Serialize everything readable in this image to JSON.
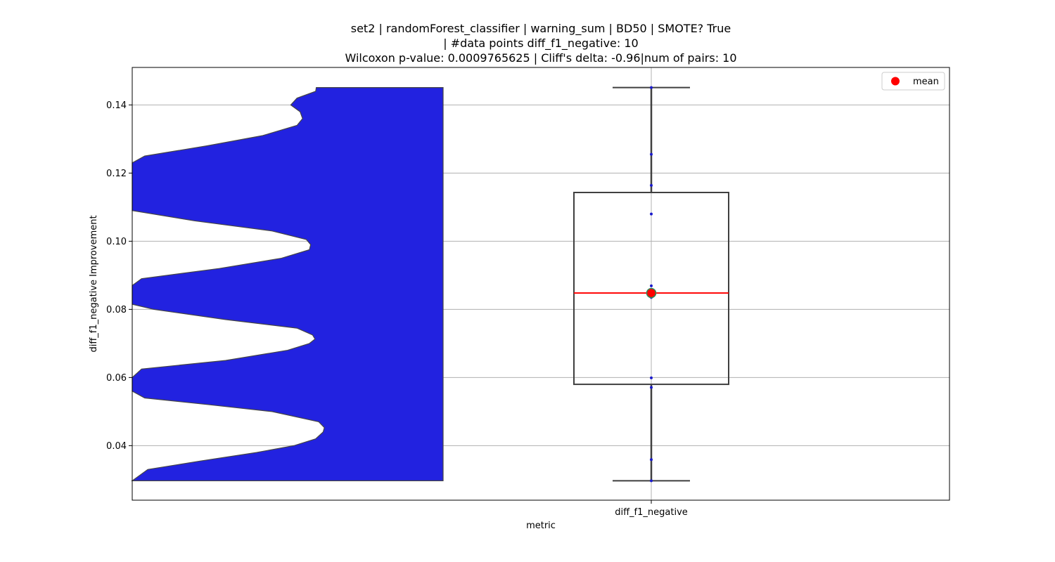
{
  "chart_data": {
    "type": "box-violin",
    "title_lines": [
      "set2 | randomForest_classifier | warning_sum | BD50 | SMOTE? True",
      "| #data points diff_f1_negative: 10",
      "Wilcoxon p-value: 0.0009765625 | Cliff's delta: -0.96|num of pairs: 10"
    ],
    "xlabel": "metric",
    "ylabel": "diff_f1_negative Improvement",
    "categories": [
      "diff_f1_negative"
    ],
    "ylim": [
      0.024,
      0.151
    ],
    "yticks": [
      0.04,
      0.06,
      0.08,
      0.1,
      0.12,
      0.14
    ],
    "ytick_labels": [
      "0.04",
      "0.06",
      "0.08",
      "0.10",
      "0.12",
      "0.14"
    ],
    "grid": true,
    "legend": {
      "entries": [
        {
          "label": "mean",
          "color": "#ff0000"
        }
      ],
      "placement": "top-right"
    },
    "points": [
      0.0297,
      0.0359,
      0.0571,
      0.0599,
      0.0835,
      0.0869,
      0.108,
      0.1164,
      0.1255,
      0.1451
    ],
    "box": {
      "whisker_low": 0.0297,
      "q1": 0.058,
      "median": 0.0848,
      "q3": 0.1143,
      "whisker_high": 0.1451
    },
    "mean": 0.0848,
    "violin_density": [
      [
        0.0297,
        1.0
      ],
      [
        0.033,
        0.95
      ],
      [
        0.0355,
        0.78
      ],
      [
        0.038,
        0.6
      ],
      [
        0.04,
        0.48
      ],
      [
        0.042,
        0.41
      ],
      [
        0.044,
        0.386
      ],
      [
        0.0453,
        0.382
      ],
      [
        0.047,
        0.4
      ],
      [
        0.05,
        0.55
      ],
      [
        0.052,
        0.75
      ],
      [
        0.054,
        0.96
      ],
      [
        0.056,
        1.0
      ],
      [
        0.06,
        1.0
      ],
      [
        0.0625,
        0.97
      ],
      [
        0.065,
        0.7
      ],
      [
        0.068,
        0.5
      ],
      [
        0.07,
        0.43
      ],
      [
        0.0713,
        0.412
      ],
      [
        0.0725,
        0.42
      ],
      [
        0.0745,
        0.47
      ],
      [
        0.077,
        0.7
      ],
      [
        0.08,
        0.93
      ],
      [
        0.0815,
        1.0
      ],
      [
        0.087,
        1.0
      ],
      [
        0.089,
        0.97
      ],
      [
        0.092,
        0.72
      ],
      [
        0.095,
        0.52
      ],
      [
        0.0975,
        0.43
      ],
      [
        0.099,
        0.426
      ],
      [
        0.1005,
        0.44
      ],
      [
        0.103,
        0.55
      ],
      [
        0.106,
        0.8
      ],
      [
        0.109,
        1.0
      ],
      [
        0.123,
        1.0
      ],
      [
        0.125,
        0.96
      ],
      [
        0.128,
        0.76
      ],
      [
        0.131,
        0.58
      ],
      [
        0.134,
        0.47
      ],
      [
        0.136,
        0.452
      ],
      [
        0.138,
        0.46
      ],
      [
        0.14,
        0.49
      ],
      [
        0.142,
        0.47
      ],
      [
        0.144,
        0.41
      ],
      [
        0.1451,
        0.408
      ]
    ],
    "colors": {
      "violin_fill": "#2222e0",
      "violin_edge": "#444444",
      "box_edge": "#3f3f3f",
      "median": "#ff0000",
      "mean_marker": "#ff0000",
      "mean_edge": "#2e8b57",
      "points": "#1a1acc",
      "grid": "#b0b0b0"
    }
  }
}
